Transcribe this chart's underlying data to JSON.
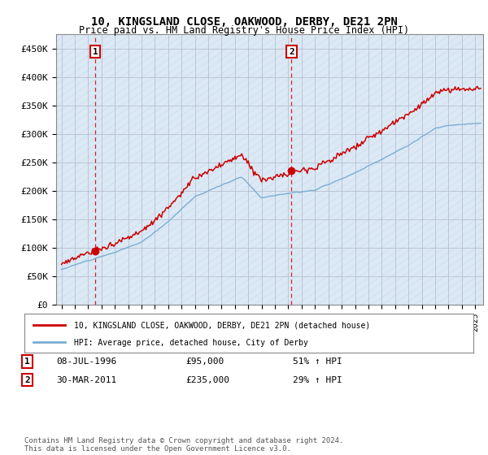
{
  "title": "10, KINGSLAND CLOSE, OAKWOOD, DERBY, DE21 2PN",
  "subtitle": "Price paid vs. HM Land Registry's House Price Index (HPI)",
  "background_color": "#dce9f5",
  "ylim": [
    0,
    475000
  ],
  "yticks": [
    0,
    50000,
    100000,
    150000,
    200000,
    250000,
    300000,
    350000,
    400000,
    450000
  ],
  "ytick_labels": [
    "£0",
    "£50K",
    "£100K",
    "£150K",
    "£200K",
    "£250K",
    "£300K",
    "£350K",
    "£400K",
    "£450K"
  ],
  "sale1": {
    "date_num": 1996.52,
    "price": 95000,
    "label": "1",
    "annotation": "08-JUL-1996",
    "price_str": "£95,000",
    "hpi_str": "51% ↑ HPI"
  },
  "sale2": {
    "date_num": 2011.24,
    "price": 235000,
    "label": "2",
    "annotation": "30-MAR-2011",
    "price_str": "£235,000",
    "hpi_str": "29% ↑ HPI"
  },
  "legend_line1": "10, KINGSLAND CLOSE, OAKWOOD, DERBY, DE21 2PN (detached house)",
  "legend_line2": "HPI: Average price, detached house, City of Derby",
  "footer": "Contains HM Land Registry data © Crown copyright and database right 2024.\nThis data is licensed under the Open Government Licence v3.0.",
  "line_color": "#cc0000",
  "hpi_color": "#7aaed4",
  "xmin": 1993.6,
  "xmax": 2025.6
}
